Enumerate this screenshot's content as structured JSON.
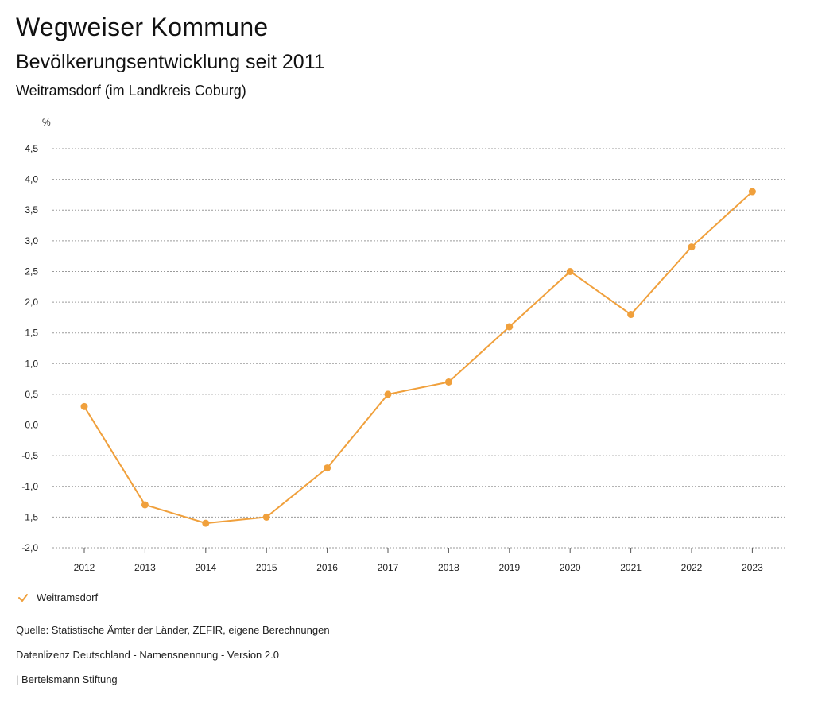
{
  "header": {
    "title": "Wegweiser Kommune",
    "subtitle": "Bevölkerungsentwicklung seit 2011",
    "region": "Weitramsdorf (im Landkreis Coburg)"
  },
  "chart_data": {
    "type": "line",
    "title": "Bevölkerungsentwicklung seit 2011",
    "ylabel": "%",
    "xlabel": "",
    "ylim": [
      -2.0,
      4.5
    ],
    "ytick_step": 0.5,
    "yticks": [
      "4,5",
      "4,0",
      "3,5",
      "3,0",
      "2,5",
      "2,0",
      "1,5",
      "1,0",
      "0,5",
      "0,0",
      "-0,5",
      "-1,0",
      "-1,5",
      "-2,0"
    ],
    "grid": true,
    "categories": [
      "2012",
      "2013",
      "2014",
      "2015",
      "2016",
      "2017",
      "2018",
      "2019",
      "2020",
      "2021",
      "2022",
      "2023"
    ],
    "series": [
      {
        "name": "Weitramsdorf",
        "color": "#F0A03C",
        "values": [
          0.3,
          -1.3,
          -1.6,
          -1.5,
          -0.7,
          0.5,
          0.7,
          1.6,
          2.5,
          1.8,
          2.9,
          3.8
        ]
      }
    ],
    "legend_position": "bottom-left"
  },
  "legend": {
    "label": "Weitramsdorf",
    "icon": "check-icon",
    "color": "#F0A03C"
  },
  "footer": {
    "source": "Quelle: Statistische Ämter der Länder, ZEFIR, eigene Berechnungen",
    "license": "Datenlizenz Deutschland - Namensnennung - Version 2.0",
    "publisher": "| Bertelsmann Stiftung"
  }
}
